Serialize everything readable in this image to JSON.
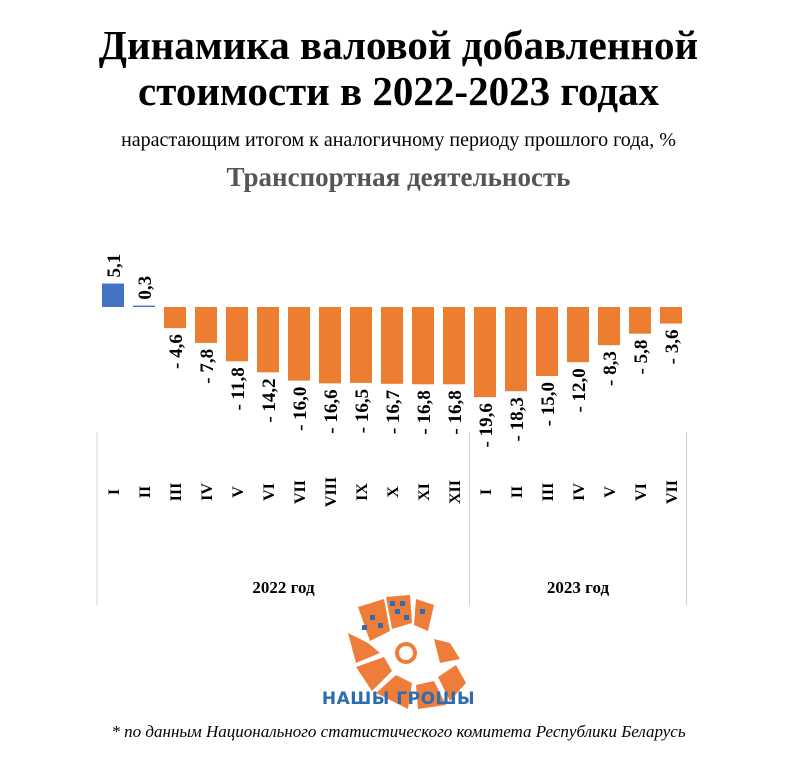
{
  "header": {
    "title_line1": "Динамика валовой добавленной",
    "title_line2": "стоимости в 2022-2023 годах",
    "subtitle": "нарастающим итогом к аналогичному периоду прошлого года, %",
    "section": "Транспортная деятельность"
  },
  "chart_data": {
    "type": "bar",
    "categories": [
      "I",
      "II",
      "III",
      "IV",
      "V",
      "VI",
      "VII",
      "VIII",
      "IX",
      "X",
      "XI",
      "XII",
      "I",
      "II",
      "III",
      "IV",
      "V",
      "VI",
      "VII"
    ],
    "values": [
      5.1,
      0.3,
      -4.6,
      -7.8,
      -11.8,
      -14.2,
      -16.0,
      -16.6,
      -16.5,
      -16.7,
      -16.8,
      -16.8,
      -19.6,
      -18.3,
      -15.0,
      -12.0,
      -8.3,
      -5.8,
      -3.6
    ],
    "value_labels": [
      "5,1",
      "0,3",
      "- 4,6",
      "- 7,8",
      "- 11,8",
      "- 14,2",
      "- 16,0",
      "- 16,6",
      "- 16,5",
      "- 16,7",
      "- 16,8",
      "- 16,8",
      "- 19,6",
      "- 18,3",
      "- 15,0",
      "- 12,0",
      "- 8,3",
      "- 5,8",
      "- 3,6"
    ],
    "groups": [
      {
        "label": "2022 год",
        "start": 0,
        "end": 11
      },
      {
        "label": "2023 год",
        "start": 12,
        "end": 18
      }
    ],
    "colors": {
      "positive": "#4472c4",
      "negative": "#ed7d31"
    },
    "ylim": [
      -20,
      6
    ],
    "grid": false
  },
  "logo": {
    "brand": "НАШЫ ГРОШЫ",
    "colors": {
      "primary": "#ee7d3a",
      "pattern": "#2f6cae"
    }
  },
  "footnote": "* по данным Национального статистического комитета Республики Беларусь"
}
